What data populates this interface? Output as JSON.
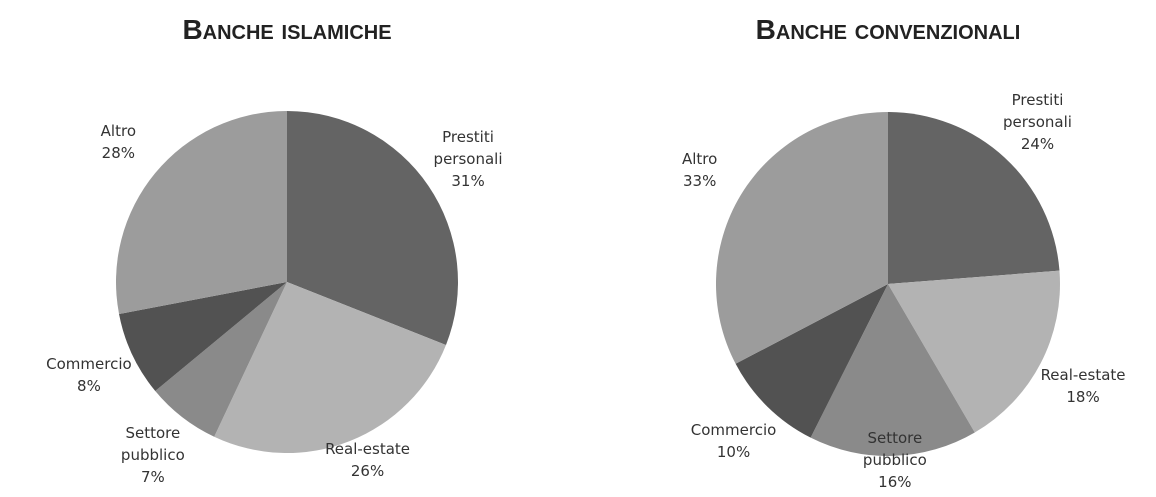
{
  "chart_data": [
    {
      "type": "pie",
      "title": "Banche islamiche",
      "categories": [
        "Prestiti personali",
        "Real-estate",
        "Settore pubblico",
        "Commercio",
        "Altro"
      ],
      "values": [
        31,
        26,
        7,
        8,
        28
      ],
      "value_labels": [
        "31%",
        "26%",
        "7%",
        "8%",
        "28%"
      ],
      "colors": [
        "#646464",
        "#b3b3b3",
        "#8a8a8a",
        "#525252",
        "#9c9c9c"
      ]
    },
    {
      "type": "pie",
      "title": "Banche convenzionali",
      "categories": [
        "Prestiti personali",
        "Real-estate",
        "Settore pubblico",
        "Commercio",
        "Altro"
      ],
      "values": [
        24,
        18,
        16,
        10,
        33
      ],
      "value_labels": [
        "24%",
        "18%",
        "16%",
        "10%",
        "33%"
      ],
      "colors": [
        "#646464",
        "#b3b3b3",
        "#8a8a8a",
        "#525252",
        "#9c9c9c"
      ]
    }
  ]
}
